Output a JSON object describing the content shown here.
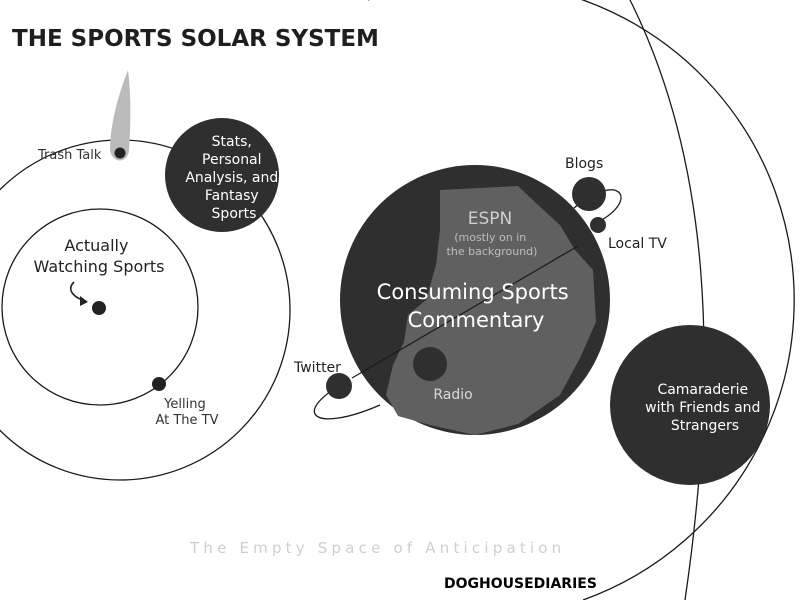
{
  "title": "THE SPORTS SOLAR SYSTEM",
  "center_body": {
    "label_lines": [
      "Consuming Sports",
      "Commentary"
    ],
    "continent": {
      "name": "ESPN",
      "note_lines": [
        "(mostly on in",
        "the background)"
      ]
    },
    "moons": {
      "radio": "Radio",
      "twitter": "Twitter",
      "blogs": "Blogs",
      "local_tv": "Local TV"
    }
  },
  "stats_planet": {
    "label_lines": [
      "Stats,",
      "Personal",
      "Analysis, and",
      "Fantasy",
      "Sports"
    ]
  },
  "comet": {
    "label": "Trash Talk"
  },
  "watching": {
    "label_lines": [
      "Actually",
      "Watching Sports"
    ],
    "satellite_label_lines": [
      "Yelling",
      "At The TV"
    ]
  },
  "camaraderie_planet": {
    "label_lines": [
      "Camaraderie",
      "with Friends and",
      "Strangers"
    ]
  },
  "empty_space": "The Empty Space of Anticipation",
  "credit": "DOGHOUSEDIARIES",
  "colors": {
    "planet": "#2f2f2f",
    "continent": "#606060",
    "orbit_line": "#1a1a1a",
    "comet_tail": "#bbbbbb"
  }
}
